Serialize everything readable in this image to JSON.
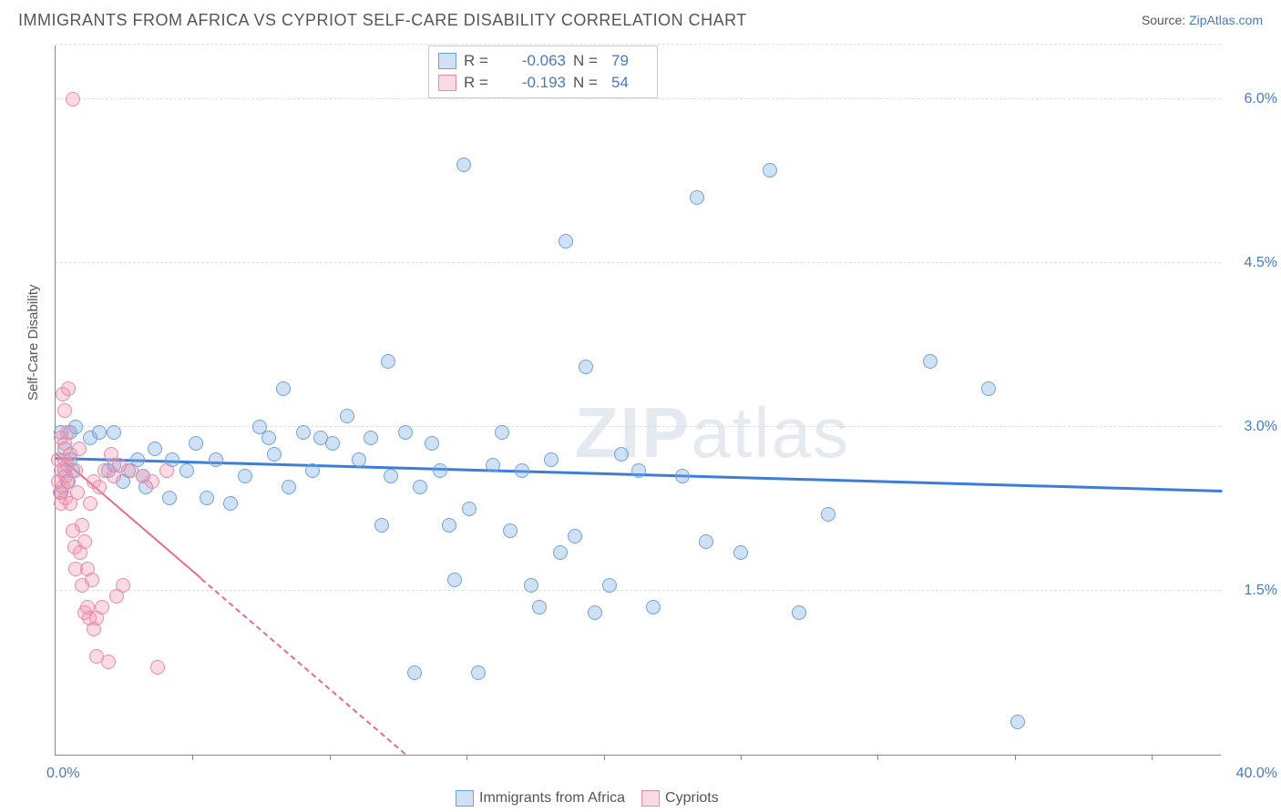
{
  "title": "IMMIGRANTS FROM AFRICA VS CYPRIOT SELF-CARE DISABILITY CORRELATION CHART",
  "source_label": "Source:",
  "source_link": "ZipAtlas.com",
  "ylabel": "Self-Care Disability",
  "watermark_part1": "ZIP",
  "watermark_part2": "atlas",
  "chart": {
    "type": "scatter",
    "background_color": "#ffffff",
    "grid_color": "#dddddd",
    "axis_color": "#888888",
    "xlim": [
      0,
      40
    ],
    "ylim": [
      0,
      6.5
    ],
    "x_start_label": "0.0%",
    "x_end_label": "40.0%",
    "yticks": [
      {
        "v": 1.5,
        "label": "1.5%"
      },
      {
        "v": 3.0,
        "label": "3.0%"
      },
      {
        "v": 4.5,
        "label": "4.5%"
      },
      {
        "v": 6.0,
        "label": "6.0%"
      }
    ],
    "xtick_positions": [
      4.7,
      9.4,
      14.1,
      18.8,
      23.5,
      28.2,
      32.9,
      37.6
    ],
    "ytick_color": "#4a7ab8",
    "label_fontsize": 15,
    "marker_radius": 8,
    "marker_stroke_width": 1.5,
    "series": [
      {
        "name": "Immigrants from Africa",
        "fill": "rgba(120,170,225,0.35)",
        "stroke": "#6fa3d8",
        "trend": {
          "x1": 0,
          "y1": 2.7,
          "x2": 40,
          "y2": 2.4,
          "color": "#3b7dd8",
          "width": 3,
          "dashed": false
        },
        "R": "-0.063",
        "N": "79",
        "points": [
          [
            0.2,
            2.95
          ],
          [
            0.3,
            2.8
          ],
          [
            0.3,
            2.6
          ],
          [
            0.4,
            2.5
          ],
          [
            0.5,
            2.95
          ],
          [
            0.5,
            2.7
          ],
          [
            0.6,
            2.6
          ],
          [
            0.7,
            3.0
          ],
          [
            1.2,
            2.9
          ],
          [
            1.5,
            2.95
          ],
          [
            1.8,
            2.6
          ],
          [
            2.0,
            2.65
          ],
          [
            2.0,
            2.95
          ],
          [
            2.3,
            2.5
          ],
          [
            2.5,
            2.6
          ],
          [
            2.8,
            2.7
          ],
          [
            3.0,
            2.55
          ],
          [
            3.1,
            2.45
          ],
          [
            3.4,
            2.8
          ],
          [
            3.9,
            2.35
          ],
          [
            4.0,
            2.7
          ],
          [
            4.5,
            2.6
          ],
          [
            4.8,
            2.85
          ],
          [
            5.2,
            2.35
          ],
          [
            5.5,
            2.7
          ],
          [
            6.0,
            2.3
          ],
          [
            6.5,
            2.55
          ],
          [
            7.0,
            3.0
          ],
          [
            7.3,
            2.9
          ],
          [
            7.5,
            2.75
          ],
          [
            7.8,
            3.35
          ],
          [
            8.0,
            2.45
          ],
          [
            8.5,
            2.95
          ],
          [
            8.8,
            2.6
          ],
          [
            9.1,
            2.9
          ],
          [
            9.5,
            2.85
          ],
          [
            10.0,
            3.1
          ],
          [
            10.4,
            2.7
          ],
          [
            10.8,
            2.9
          ],
          [
            11.2,
            2.1
          ],
          [
            11.4,
            3.6
          ],
          [
            11.5,
            2.55
          ],
          [
            12.0,
            2.95
          ],
          [
            12.3,
            0.75
          ],
          [
            12.5,
            2.45
          ],
          [
            12.9,
            2.85
          ],
          [
            13.2,
            2.6
          ],
          [
            13.5,
            2.1
          ],
          [
            13.7,
            1.6
          ],
          [
            14.0,
            5.4
          ],
          [
            14.2,
            2.25
          ],
          [
            14.5,
            0.75
          ],
          [
            15.0,
            2.65
          ],
          [
            15.3,
            2.95
          ],
          [
            15.6,
            2.05
          ],
          [
            16.0,
            2.6
          ],
          [
            16.3,
            1.55
          ],
          [
            16.6,
            1.35
          ],
          [
            17.0,
            2.7
          ],
          [
            17.3,
            1.85
          ],
          [
            17.5,
            4.7
          ],
          [
            17.8,
            2.0
          ],
          [
            18.2,
            3.55
          ],
          [
            18.5,
            1.3
          ],
          [
            19.0,
            1.55
          ],
          [
            19.4,
            2.75
          ],
          [
            20.0,
            2.6
          ],
          [
            20.5,
            1.35
          ],
          [
            21.5,
            2.55
          ],
          [
            22.0,
            5.1
          ],
          [
            22.3,
            1.95
          ],
          [
            23.5,
            1.85
          ],
          [
            24.5,
            5.35
          ],
          [
            25.5,
            1.3
          ],
          [
            26.5,
            2.2
          ],
          [
            30.0,
            3.6
          ],
          [
            32.0,
            3.35
          ],
          [
            33.0,
            0.3
          ],
          [
            0.2,
            2.4
          ]
        ]
      },
      {
        "name": "Cypriots",
        "fill": "rgba(240,150,175,0.35)",
        "stroke": "#e88ba5",
        "trend": {
          "x1": 0,
          "y1": 2.75,
          "x2": 12,
          "y2": 0,
          "color": "#e56b8f",
          "width": 2,
          "dashed": true,
          "solid_until_x": 5.0
        },
        "R": "-0.193",
        "N": "54",
        "points": [
          [
            0.1,
            2.7
          ],
          [
            0.1,
            2.5
          ],
          [
            0.15,
            2.4
          ],
          [
            0.2,
            2.9
          ],
          [
            0.2,
            2.6
          ],
          [
            0.2,
            2.3
          ],
          [
            0.25,
            3.3
          ],
          [
            0.25,
            2.45
          ],
          [
            0.3,
            2.7
          ],
          [
            0.3,
            3.15
          ],
          [
            0.3,
            2.85
          ],
          [
            0.35,
            2.55
          ],
          [
            0.35,
            2.35
          ],
          [
            0.4,
            2.65
          ],
          [
            0.4,
            2.95
          ],
          [
            0.45,
            3.35
          ],
          [
            0.45,
            2.5
          ],
          [
            0.5,
            2.75
          ],
          [
            0.5,
            2.3
          ],
          [
            0.6,
            6.0
          ],
          [
            0.6,
            2.05
          ],
          [
            0.65,
            1.9
          ],
          [
            0.7,
            1.7
          ],
          [
            0.7,
            2.6
          ],
          [
            0.75,
            2.4
          ],
          [
            0.8,
            2.8
          ],
          [
            0.85,
            1.85
          ],
          [
            0.9,
            2.1
          ],
          [
            0.9,
            1.55
          ],
          [
            1.0,
            1.95
          ],
          [
            1.0,
            1.3
          ],
          [
            1.1,
            1.7
          ],
          [
            1.1,
            1.35
          ],
          [
            1.15,
            1.25
          ],
          [
            1.2,
            2.3
          ],
          [
            1.25,
            1.6
          ],
          [
            1.3,
            2.5
          ],
          [
            1.3,
            1.15
          ],
          [
            1.4,
            1.25
          ],
          [
            1.4,
            0.9
          ],
          [
            1.5,
            2.45
          ],
          [
            1.6,
            1.35
          ],
          [
            1.7,
            2.6
          ],
          [
            1.8,
            0.85
          ],
          [
            1.9,
            2.75
          ],
          [
            2.0,
            2.55
          ],
          [
            2.1,
            1.45
          ],
          [
            2.2,
            2.65
          ],
          [
            2.3,
            1.55
          ],
          [
            2.6,
            2.6
          ],
          [
            3.0,
            2.55
          ],
          [
            3.3,
            2.5
          ],
          [
            3.5,
            0.8
          ],
          [
            3.8,
            2.6
          ]
        ]
      }
    ]
  },
  "legend_top": {
    "rows": [
      {
        "swatch_fill": "rgba(120,170,225,0.35)",
        "swatch_stroke": "#6fa3d8",
        "r_label": "R =",
        "r_val": "-0.063",
        "n_label": "N =",
        "n_val": "79"
      },
      {
        "swatch_fill": "rgba(240,150,175,0.35)",
        "swatch_stroke": "#e88ba5",
        "r_label": "R =",
        "r_val": "-0.193",
        "n_label": "N =",
        "n_val": "54"
      }
    ]
  },
  "legend_bottom": [
    {
      "swatch_fill": "rgba(120,170,225,0.35)",
      "swatch_stroke": "#6fa3d8",
      "label": "Immigrants from Africa"
    },
    {
      "swatch_fill": "rgba(240,150,175,0.35)",
      "swatch_stroke": "#e88ba5",
      "label": "Cypriots"
    }
  ]
}
